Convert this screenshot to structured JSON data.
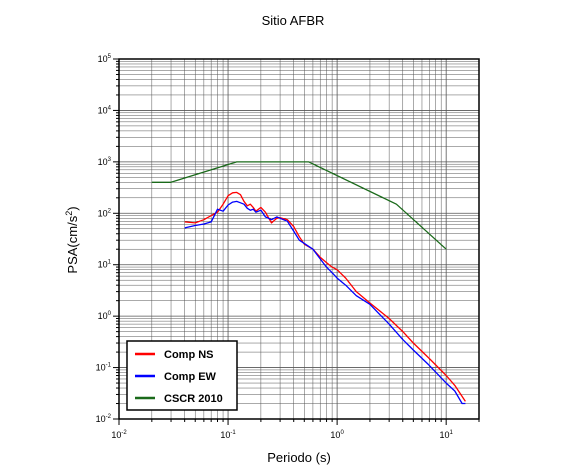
{
  "chart_data": {
    "type": "line",
    "title": "Sitio AFBR",
    "xlabel": "Periodo (s)",
    "ylabel_base": "PSA(cm/s",
    "ylabel_exp": "2",
    "ylabel_close": ")",
    "x_scale": "log",
    "y_scale": "log",
    "xlim": [
      0.01,
      20
    ],
    "ylim": [
      0.01,
      100000
    ],
    "x_ticks": [
      {
        "value": 0.01,
        "base": "10",
        "exp": "-2"
      },
      {
        "value": 0.1,
        "base": "10",
        "exp": "-1"
      },
      {
        "value": 1,
        "base": "10",
        "exp": "0"
      },
      {
        "value": 10,
        "base": "10",
        "exp": "1"
      }
    ],
    "y_ticks": [
      {
        "value": 0.01,
        "base": "10",
        "exp": "-2"
      },
      {
        "value": 0.1,
        "base": "10",
        "exp": "-1"
      },
      {
        "value": 1,
        "base": "10",
        "exp": "0"
      },
      {
        "value": 10,
        "base": "10",
        "exp": "1"
      },
      {
        "value": 100,
        "base": "10",
        "exp": "2"
      },
      {
        "value": 1000,
        "base": "10",
        "exp": "3"
      },
      {
        "value": 10000,
        "base": "10",
        "exp": "4"
      },
      {
        "value": 100000,
        "base": "10",
        "exp": "5"
      }
    ],
    "grid": true,
    "legend_position": "bottom-left",
    "series": [
      {
        "name": "Comp NS",
        "color": "#ff0000",
        "x": [
          0.04,
          0.05,
          0.06,
          0.07,
          0.08,
          0.09,
          0.1,
          0.11,
          0.12,
          0.13,
          0.14,
          0.15,
          0.16,
          0.17,
          0.18,
          0.2,
          0.22,
          0.25,
          0.28,
          0.3,
          0.35,
          0.4,
          0.45,
          0.5,
          0.6,
          0.7,
          0.8,
          0.9,
          1.0,
          1.2,
          1.5,
          2.0,
          3.0,
          4.0,
          5.0,
          7.0,
          10.0,
          12.0,
          15.0
        ],
        "y": [
          68,
          65,
          75,
          90,
          105,
          150,
          220,
          250,
          255,
          230,
          170,
          140,
          150,
          130,
          110,
          130,
          105,
          65,
          80,
          82,
          75,
          55,
          35,
          25,
          20,
          14,
          11,
          9,
          8,
          5.5,
          3,
          1.8,
          0.9,
          0.5,
          0.3,
          0.15,
          0.07,
          0.045,
          0.022
        ]
      },
      {
        "name": "Comp EW",
        "color": "#0000ff",
        "x": [
          0.04,
          0.05,
          0.06,
          0.07,
          0.08,
          0.09,
          0.1,
          0.11,
          0.12,
          0.13,
          0.14,
          0.15,
          0.16,
          0.17,
          0.18,
          0.2,
          0.22,
          0.25,
          0.28,
          0.3,
          0.35,
          0.4,
          0.45,
          0.5,
          0.6,
          0.7,
          0.8,
          0.9,
          1.0,
          1.2,
          1.5,
          2.0,
          3.0,
          4.0,
          5.0,
          7.0,
          10.0,
          12.0,
          14.0,
          15.0
        ],
        "y": [
          52,
          58,
          62,
          68,
          120,
          110,
          145,
          165,
          170,
          160,
          150,
          125,
          115,
          120,
          105,
          115,
          85,
          75,
          85,
          80,
          70,
          45,
          30,
          26,
          20,
          13,
          9,
          7,
          5.5,
          4,
          2.5,
          1.7,
          0.7,
          0.35,
          0.22,
          0.11,
          0.05,
          0.035,
          0.02,
          0.02
        ]
      },
      {
        "name": "CSCR 2010",
        "color": "#1a6a1a",
        "x": [
          0.02,
          0.03,
          0.12,
          0.55,
          3.5,
          10.0
        ],
        "y": [
          400,
          400,
          1000,
          1000,
          150,
          20
        ]
      }
    ]
  }
}
